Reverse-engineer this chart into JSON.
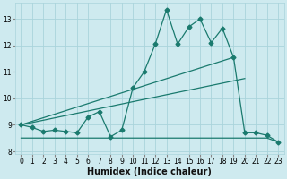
{
  "xlabel": "Humidex (Indice chaleur)",
  "background_color": "#ceeaef",
  "grid_color": "#aad4db",
  "line_color": "#1a7a6e",
  "series_main": {
    "x": [
      0,
      1,
      2,
      3,
      4,
      5,
      6,
      7,
      8,
      9,
      10,
      11,
      12,
      13,
      14,
      15,
      16,
      17,
      18,
      19,
      20,
      21,
      22,
      23
    ],
    "y": [
      9.0,
      8.9,
      8.75,
      8.8,
      8.75,
      8.7,
      9.3,
      9.5,
      8.55,
      8.8,
      10.4,
      11.0,
      12.05,
      13.35,
      12.05,
      12.7,
      13.0,
      12.1,
      12.65,
      11.55,
      8.7,
      8.7,
      8.6,
      8.35
    ]
  },
  "series_trend1": {
    "x": [
      0,
      19
    ],
    "y": [
      9.0,
      11.55
    ]
  },
  "series_trend2": {
    "x": [
      0,
      20
    ],
    "y": [
      9.0,
      10.75
    ]
  },
  "series_flat": {
    "x": [
      0,
      9,
      10,
      11,
      12,
      13,
      14,
      15,
      16,
      17,
      18,
      19,
      20,
      21,
      22,
      23
    ],
    "y": [
      8.5,
      8.5,
      8.5,
      8.5,
      8.5,
      8.5,
      8.5,
      8.5,
      8.5,
      8.5,
      8.5,
      8.5,
      8.5,
      8.5,
      8.5,
      8.35
    ]
  },
  "xlim": [
    -0.5,
    23.5
  ],
  "ylim": [
    7.9,
    13.6
  ],
  "xticks": [
    0,
    1,
    2,
    3,
    4,
    5,
    6,
    7,
    8,
    9,
    10,
    11,
    12,
    13,
    14,
    15,
    16,
    17,
    18,
    19,
    20,
    21,
    22,
    23
  ],
  "yticks": [
    8,
    9,
    10,
    11,
    12,
    13
  ],
  "tick_fontsize": 5.5,
  "xlabel_fontsize": 7.0
}
